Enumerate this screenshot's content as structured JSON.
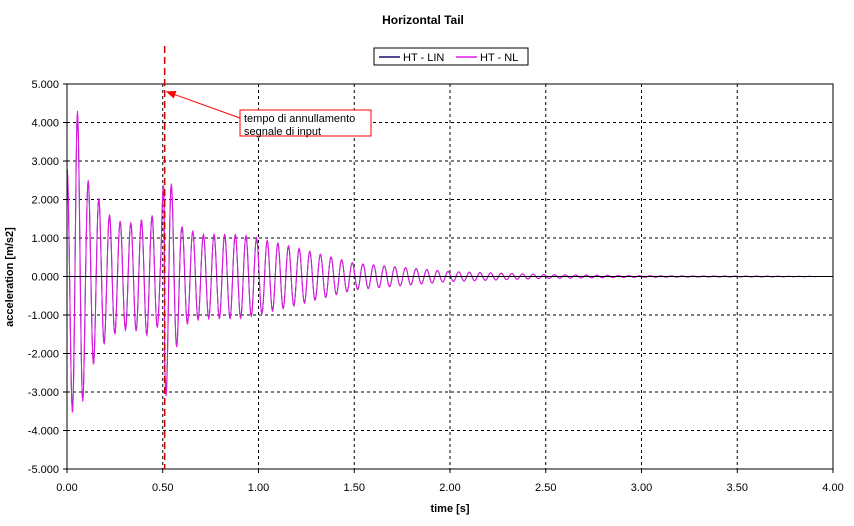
{
  "chart_data": {
    "type": "line",
    "title": "Horizontal Tail",
    "xlabel": "time [s]",
    "ylabel": "acceleration [m/s2]",
    "xlim": [
      0,
      4
    ],
    "ylim": [
      -5,
      5
    ],
    "x_ticks": [
      "0.00",
      "0.50",
      "1.00",
      "1.50",
      "2.00",
      "2.50",
      "3.00",
      "3.50",
      "4.00"
    ],
    "y_ticks": [
      "5.000",
      "4.000",
      "3.000",
      "2.000",
      "1.000",
      "0.000",
      "-1.000",
      "-2.000",
      "-3.000",
      "-4.000",
      "-5.000"
    ],
    "grid": true,
    "legend_position": "top-center",
    "series": [
      {
        "name": "HT - LIN",
        "color": "#1a0a6b",
        "description_points": {
          "x": [
            0.0,
            0.03,
            0.05,
            0.1,
            0.15,
            0.2,
            0.25,
            0.3,
            0.35,
            0.4,
            0.45,
            0.49,
            0.51,
            0.55,
            0.6,
            0.7,
            0.8,
            0.9,
            1.0,
            1.2,
            1.5,
            2.0,
            2.5,
            3.0,
            3.5,
            4.0
          ],
          "envelope": [
            2.8,
            3.6,
            4.5,
            2.6,
            2.2,
            1.7,
            1.5,
            1.4,
            1.4,
            1.5,
            1.6,
            1.1,
            3.3,
            2.3,
            1.3,
            1.1,
            1.1,
            1.1,
            1.0,
            0.75,
            0.35,
            0.13,
            0.05,
            0.02,
            0.01,
            0.0
          ]
        }
      },
      {
        "name": "HT - NL",
        "color": "#e619e6",
        "description_points": {
          "x": [
            0.0,
            0.03,
            0.05,
            0.1,
            0.15,
            0.2,
            0.25,
            0.3,
            0.35,
            0.4,
            0.45,
            0.49,
            0.51,
            0.55,
            0.6,
            0.7,
            0.8,
            0.9,
            1.0,
            1.2,
            1.5,
            2.0,
            2.5,
            3.0,
            3.5,
            4.0
          ],
          "envelope": [
            2.8,
            3.6,
            4.5,
            2.6,
            2.2,
            1.7,
            1.5,
            1.4,
            1.4,
            1.5,
            1.6,
            1.1,
            3.3,
            2.3,
            1.3,
            1.1,
            1.1,
            1.1,
            1.0,
            0.75,
            0.35,
            0.13,
            0.05,
            0.02,
            0.01,
            0.0
          ]
        }
      }
    ],
    "frequency_hz": 18,
    "vertical_marker": {
      "x": 0.51,
      "color": "#cc0000",
      "style": "dashed"
    },
    "annotation": {
      "text_lines": [
        "tempo di annullamento",
        "segnale di input"
      ],
      "target_x": 0.51,
      "target_y": 4.8,
      "border_color": "#ff0000",
      "arrow_color": "#ff0000"
    }
  }
}
